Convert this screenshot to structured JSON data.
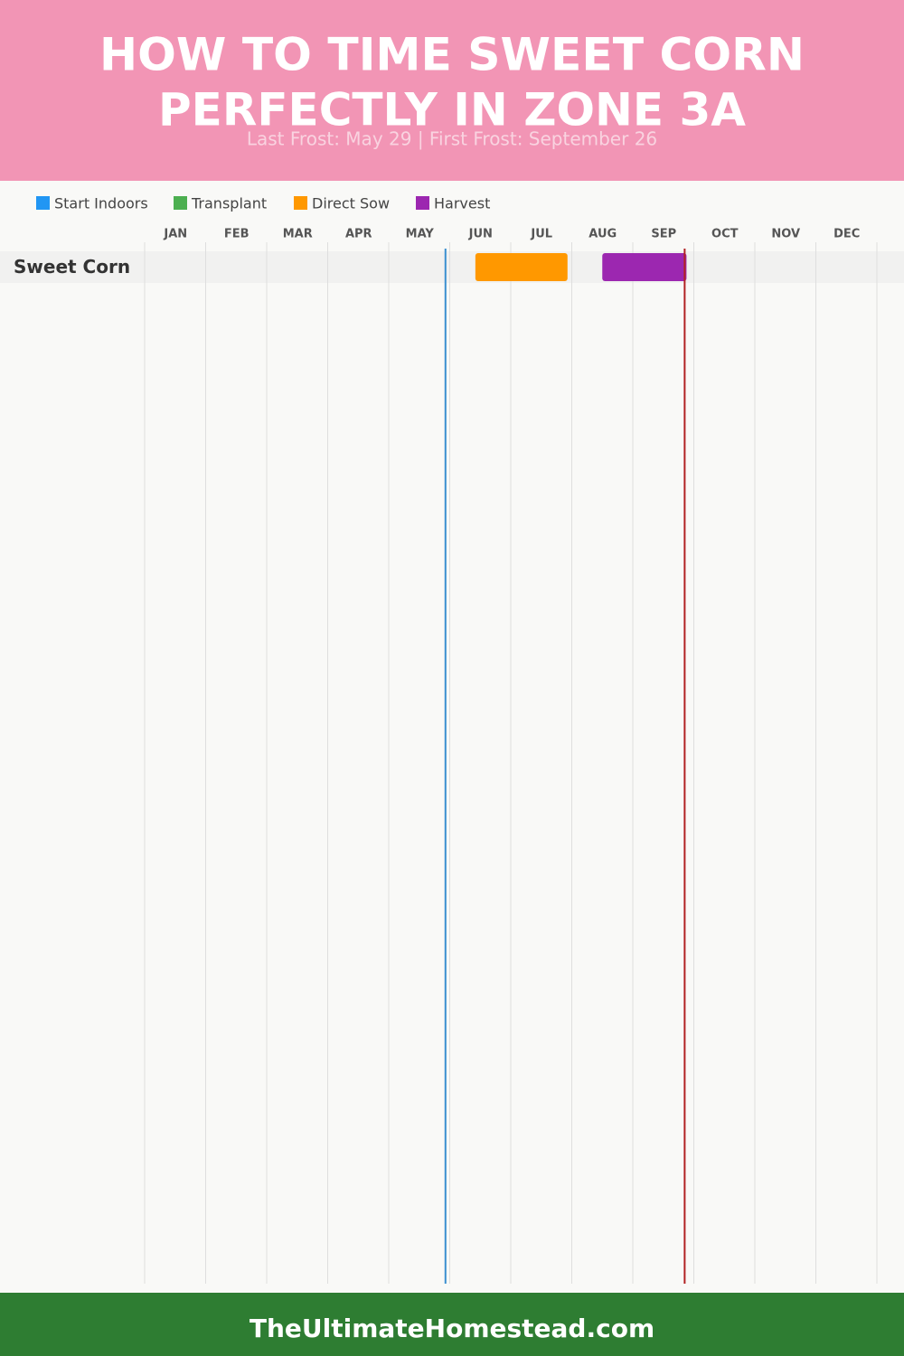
{
  "chart_data": {
    "type": "gantt",
    "title": [
      "HOW TO TIME SWEET CORN",
      "PERFECTLY IN ZONE 3A"
    ],
    "subtitle": "Last Frost: May 29 | First Frost: September 26",
    "footer": "TheUltimateHomestead.com",
    "categories": [
      "Sweet Corn"
    ],
    "xlim": [
      0,
      12
    ],
    "xticks": [
      {
        "value": 0,
        "label": "JAN"
      },
      {
        "value": 1,
        "label": "FEB"
      },
      {
        "value": 2,
        "label": "MAR"
      },
      {
        "value": 3,
        "label": "APR"
      },
      {
        "value": 4,
        "label": "MAY"
      },
      {
        "value": 5,
        "label": "JUN"
      },
      {
        "value": 6,
        "label": "JUL"
      },
      {
        "value": 7,
        "label": "AUG"
      },
      {
        "value": 8,
        "label": "SEP"
      },
      {
        "value": 9,
        "label": "OCT"
      },
      {
        "value": 10,
        "label": "NOV"
      },
      {
        "value": 11,
        "label": "DEC"
      }
    ],
    "grid": true,
    "series": [
      {
        "name": "Start Indoors",
        "color": "#2196f3",
        "values": [
          null
        ]
      },
      {
        "name": "Transplant",
        "color": "#4caf50",
        "values": [
          null
        ]
      },
      {
        "name": "Direct Sow",
        "color": "#ff9800",
        "values": [
          [
            5.42,
            6.93
          ]
        ]
      },
      {
        "name": "Harvest",
        "color": "#9c27b0",
        "values": [
          [
            7.5,
            8.88
          ]
        ]
      }
    ],
    "last_frost": {
      "value": 4.93,
      "color": "#3a8fd0"
    },
    "first_frost": {
      "value": 8.85,
      "color": "#b22222"
    }
  }
}
